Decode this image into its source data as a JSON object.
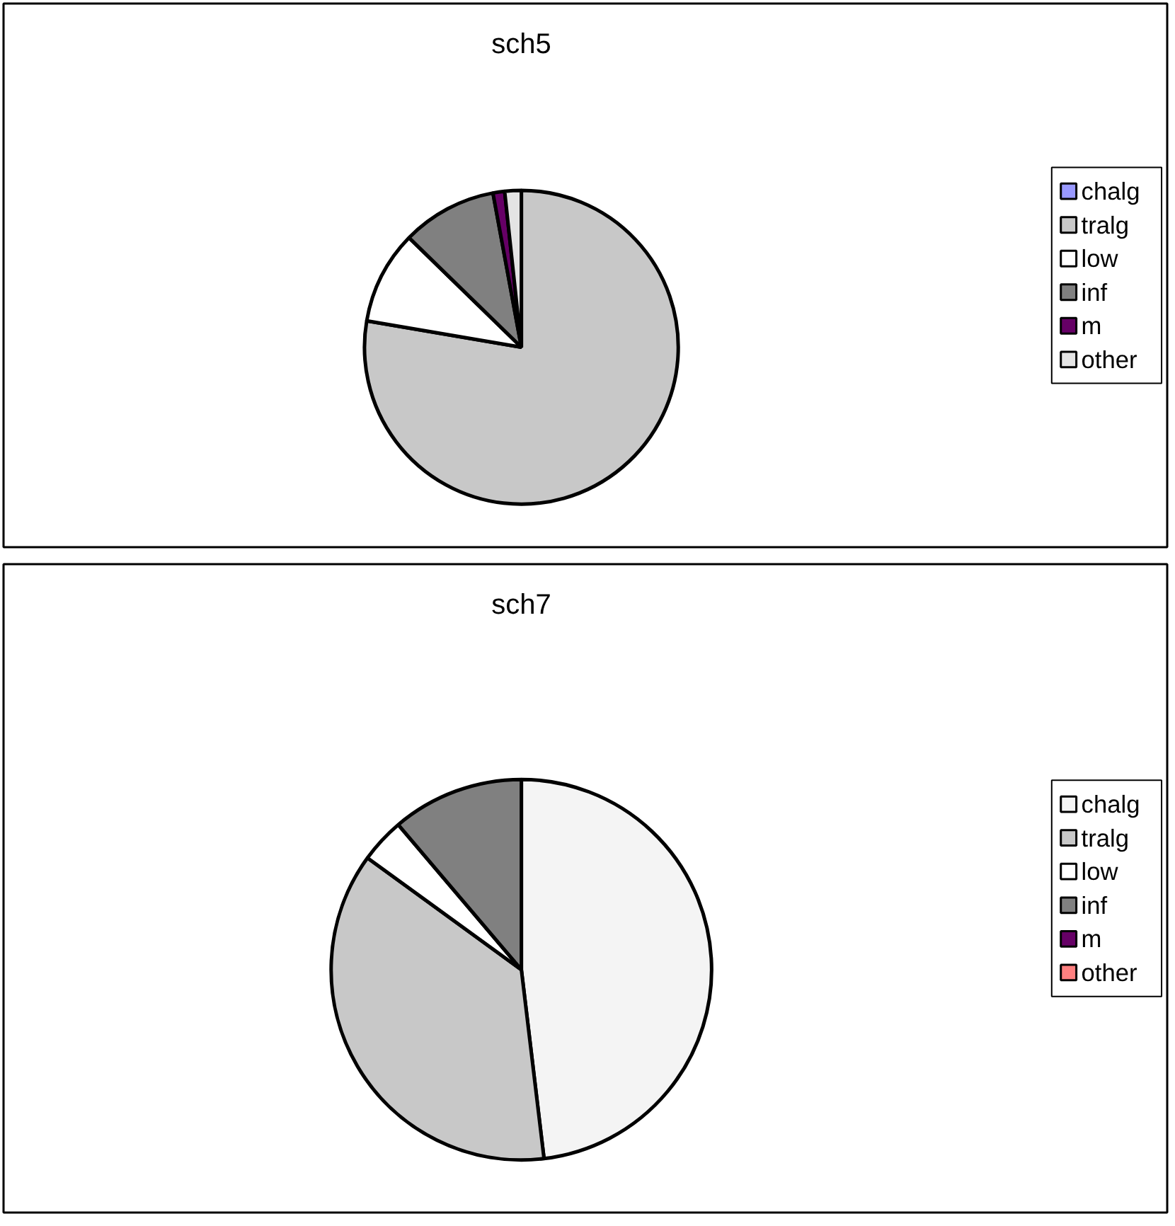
{
  "chart_data": [
    {
      "type": "pie",
      "title": "sch5",
      "categories": [
        "chalg",
        "tralg",
        "low",
        "inf",
        "m",
        "other"
      ],
      "values": [
        0,
        77.7,
        9.6,
        9.8,
        1.2,
        1.7
      ],
      "colors": [
        "#9999ff",
        "#c8c8c8",
        "#ffffff",
        "#808080",
        "#660066",
        "#e4e4e4"
      ],
      "legend": "right"
    },
    {
      "type": "pie",
      "title": "sch7",
      "categories": [
        "chalg",
        "tralg",
        "low",
        "inf",
        "m",
        "other"
      ],
      "values": [
        48.1,
        36.9,
        3.8,
        11.2,
        0,
        0
      ],
      "colors": [
        "#f4f4f4",
        "#c8c8c8",
        "#ffffff",
        "#808080",
        "#660066",
        "#ff8080"
      ],
      "legend": "right"
    }
  ]
}
